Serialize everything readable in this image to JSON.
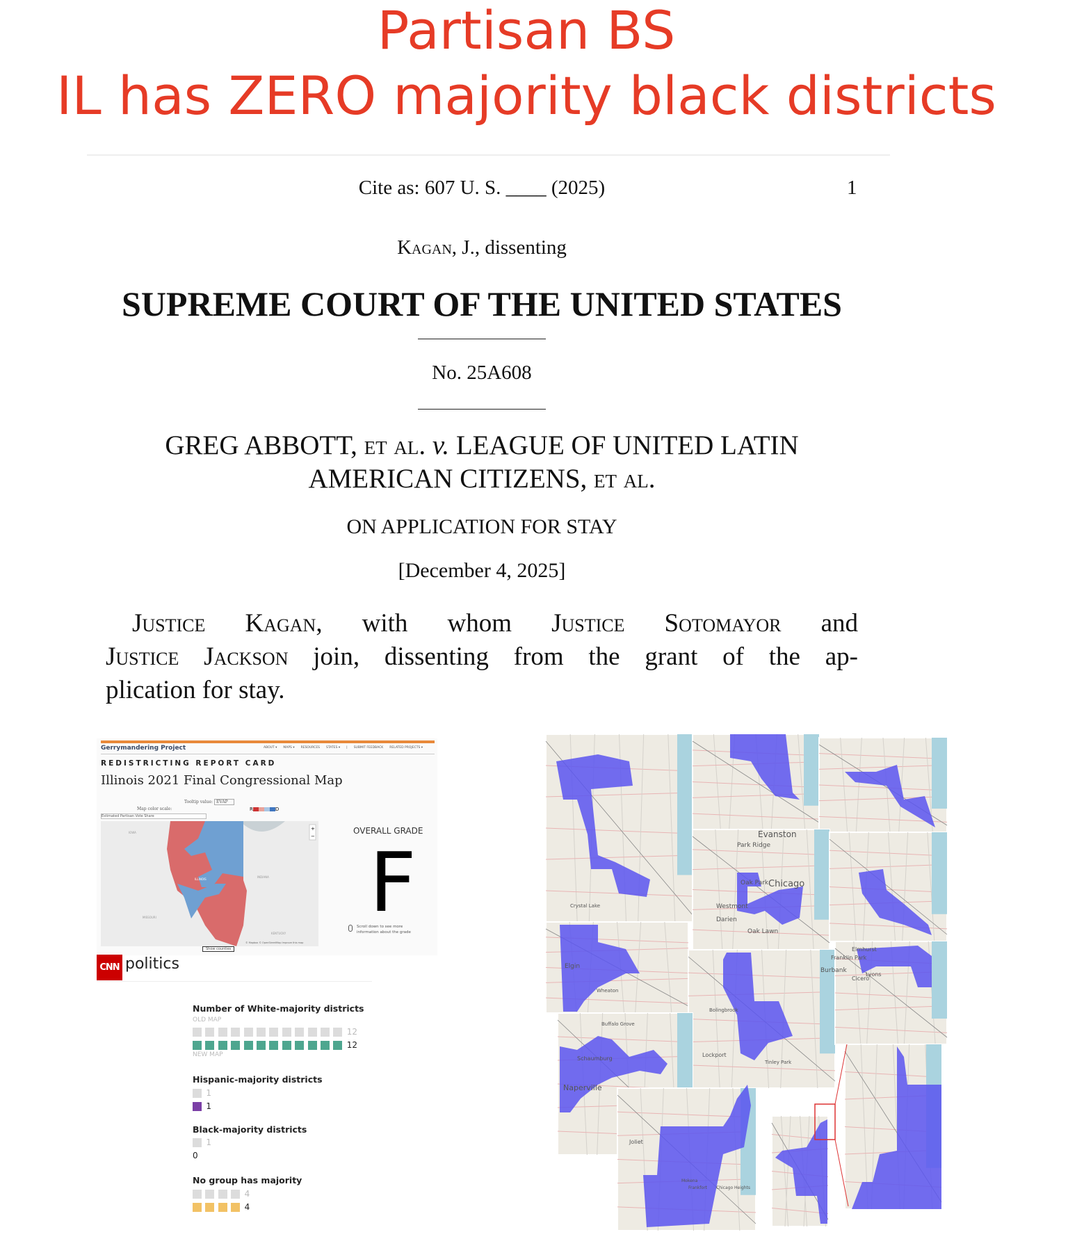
{
  "headline": {
    "line1": "Partisan BS",
    "line2": "IL has ZERO majority black districts",
    "color": "#e63b26"
  },
  "opinion": {
    "cite": "Cite as:  607 U. S. ____ (2025)",
    "page_number": "1",
    "author_sc": "Kagan",
    "author_rest": ", J., dissenting",
    "court": "SUPREME COURT OF THE UNITED STATES",
    "docket": "No. 25A608",
    "caption": {
      "l1a": "GREG ABBOTT, ",
      "l1b": "et al.",
      "l1c": "v.",
      "l1d": " LEAGUE OF UNITED LATIN",
      "l2a": "AMERICAN CITIZENS, ",
      "l2b": "et al."
    },
    "posture": "ON APPLICATION FOR STAY",
    "date": "[December 4, 2025]",
    "paragraph": {
      "l1a": "Justice Kagan",
      "l1b": ", with whom ",
      "l1c": "Justice Sotomayor",
      "l1d": " and",
      "l2a": "Justice Jackson",
      "l2b": " join, dissenting from the grant of the ap-",
      "l3": "plication for stay."
    }
  },
  "report_card": {
    "site": "Gerrymandering Project",
    "nav": [
      "ABOUT ▾",
      "MAPS ▾",
      "RESOURCES",
      "STATES ▾",
      "|",
      "SUBMIT FEEDBACK",
      "RELATED PROJECTS ▾"
    ],
    "kicker": "REDISTRICTING REPORT CARD",
    "title": "Illinois 2021 Final Congressional Map",
    "tooltip_label": "Tooltip value:",
    "tooltip_value": "EVAP",
    "color_scale_label": "Map color scale:",
    "color_scale_value": "Estimated Partisan Vote Share",
    "legend_r": "R",
    "legend_d": "D",
    "map_labels": [
      "IOWA",
      "ILLINOIS",
      "INDIANA",
      "MISSOURI",
      "KENTUCKY"
    ],
    "attribution": "© Mapbox © OpenStreetMap Improve this map",
    "show_counties": "Show counties",
    "grade_label": "OVERALL GRADE",
    "grade": "F",
    "scroll_hint_1": "Scroll down to see more",
    "scroll_hint_2": "information about the grade",
    "colors": {
      "republican": "#d96b6b",
      "democrat": "#6fa0d2",
      "accent": "#e8893a"
    }
  },
  "cnn": {
    "logo": "CNN",
    "section": "politics",
    "groups": [
      {
        "title": "Number of White-majority districts",
        "old": 12,
        "new": 12,
        "old_label": "OLD MAP",
        "new_label": "NEW MAP",
        "color": "#4ea68f"
      },
      {
        "title": "Hispanic-majority districts",
        "old": 1,
        "new": 1,
        "color": "#7b3fa6"
      },
      {
        "title": "Black-majority districts",
        "old": 1,
        "new": 0,
        "color": "#333333"
      },
      {
        "title": "No group has majority",
        "old": 4,
        "new": 4,
        "color": "#f2c265"
      }
    ]
  },
  "maps": {
    "labels": [
      "Evanston",
      "Park Ridge",
      "Oak Park",
      "Chicago",
      "Oak Lawn",
      "Darien",
      "Westmont",
      "Elgin",
      "Schaumburg",
      "Naperville",
      "Burbank",
      "Bolingbrook",
      "Joliet",
      "Lockport",
      "Mokena",
      "Frankfort",
      "Chicago Heights",
      "Crystal Lake",
      "Buffalo Grove",
      "Wheaton",
      "Franklin Park",
      "Cicero",
      "Lyons",
      "Elmhurst",
      "Tinley Park"
    ],
    "district_color": "#5b55f0",
    "highlight_color": "#d33"
  }
}
